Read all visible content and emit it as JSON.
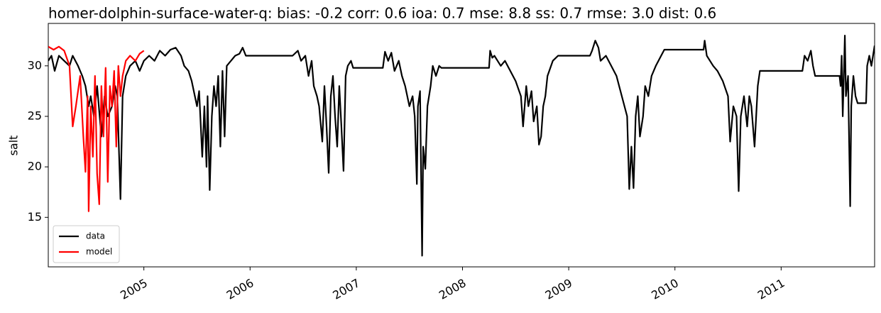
{
  "chart_data": {
    "type": "line",
    "title": "homer-dolphin-surface-water-q: bias: -0.2  corr: 0.6  ioa: 0.7  mse: 8.8  ss: 0.7  rmse: 3.0  dist: 0.6",
    "y_label": "salt",
    "xlim": [
      2004.1,
      2011.88
    ],
    "xticks": [
      2005,
      2006,
      2007,
      2008,
      2009,
      2010,
      2011
    ],
    "ylim": [
      10.1,
      34.2
    ],
    "yticks": [
      15,
      20,
      25,
      30
    ],
    "grid": false,
    "legend": "lower left",
    "series": [
      {
        "name": "data",
        "color": "#000000",
        "x": [
          2004.1,
          2004.13,
          2004.16,
          2004.2,
          2004.25,
          2004.3,
          2004.33,
          2004.38,
          2004.42,
          2004.45,
          2004.48,
          2004.5,
          2004.53,
          2004.56,
          2004.6,
          2004.63,
          2004.66,
          2004.7,
          2004.73,
          2004.75,
          2004.78,
          2004.8,
          2004.83,
          2004.87,
          2004.92,
          2004.96,
          2005.0,
          2005.05,
          2005.1,
          2005.15,
          2005.2,
          2005.25,
          2005.3,
          2005.35,
          2005.38,
          2005.42,
          2005.45,
          2005.48,
          2005.5,
          2005.52,
          2005.55,
          2005.57,
          2005.59,
          2005.6,
          2005.62,
          2005.64,
          2005.66,
          2005.68,
          2005.7,
          2005.72,
          2005.74,
          2005.76,
          2005.78,
          2005.82,
          2005.86,
          2005.9,
          2005.93,
          2005.96,
          2006.4,
          2006.45,
          2006.48,
          2006.52,
          2006.55,
          2006.58,
          2006.6,
          2006.63,
          2006.65,
          2006.68,
          2006.7,
          2006.72,
          2006.74,
          2006.76,
          2006.78,
          2006.8,
          2006.82,
          2006.84,
          2006.86,
          2006.88,
          2006.9,
          2006.92,
          2006.95,
          2006.97,
          2007.25,
          2007.27,
          2007.3,
          2007.33,
          2007.36,
          2007.4,
          2007.43,
          2007.46,
          2007.5,
          2007.53,
          2007.55,
          2007.57,
          2007.58,
          2007.6,
          2007.62,
          2007.63,
          2007.65,
          2007.67,
          2007.7,
          2007.72,
          2007.75,
          2007.78,
          2007.8,
          2008.25,
          2008.26,
          2008.28,
          2008.3,
          2008.33,
          2008.36,
          2008.4,
          2008.45,
          2008.5,
          2008.55,
          2008.57,
          2008.6,
          2008.62,
          2008.65,
          2008.67,
          2008.7,
          2008.72,
          2008.74,
          2008.76,
          2008.78,
          2008.8,
          2008.85,
          2008.9,
          2009.2,
          2009.22,
          2009.25,
          2009.28,
          2009.3,
          2009.35,
          2009.4,
          2009.45,
          2009.5,
          2009.55,
          2009.57,
          2009.59,
          2009.61,
          2009.63,
          2009.65,
          2009.67,
          2009.7,
          2009.72,
          2009.75,
          2009.78,
          2009.82,
          2009.87,
          2009.9,
          2010.27,
          2010.28,
          2010.3,
          2010.33,
          2010.36,
          2010.4,
          2010.45,
          2010.5,
          2010.52,
          2010.55,
          2010.58,
          2010.6,
          2010.62,
          2010.65,
          2010.68,
          2010.7,
          2010.72,
          2010.75,
          2010.78,
          2010.8,
          2011.2,
          2011.22,
          2011.25,
          2011.28,
          2011.3,
          2011.32,
          2011.55,
          2011.56,
          2011.57,
          2011.58,
          2011.6,
          2011.61,
          2011.63,
          2011.65,
          2011.66,
          2011.68,
          2011.7,
          2011.72,
          2011.8,
          2011.81,
          2011.83,
          2011.85,
          2011.88
        ],
        "values": [
          30.5,
          31,
          29.5,
          31,
          30.5,
          30,
          31,
          30,
          29,
          28,
          26,
          27,
          25,
          28,
          23,
          27,
          25,
          26,
          28,
          27,
          16.8,
          27,
          29,
          30,
          30.5,
          29.5,
          30.5,
          31,
          30.5,
          31.5,
          31,
          31.6,
          31.8,
          31,
          30,
          29.5,
          28.5,
          27,
          26,
          27.5,
          21,
          26,
          20,
          27,
          17.7,
          25,
          28,
          26,
          29,
          22,
          29.5,
          23,
          30,
          30.5,
          31,
          31.2,
          31.8,
          31,
          31,
          31.5,
          30.5,
          31,
          29,
          30.5,
          28,
          27,
          26,
          22.5,
          28,
          24,
          19.4,
          27,
          29,
          25,
          22,
          28,
          24,
          19.6,
          29,
          30,
          30.5,
          29.8,
          29.8,
          31.4,
          30.5,
          31.3,
          29.5,
          30.5,
          29,
          28,
          26,
          27,
          25,
          18.3,
          26,
          27.5,
          11.2,
          22,
          19.8,
          26,
          28,
          30,
          29,
          30,
          29.8,
          29.8,
          31.5,
          30.8,
          31,
          30.5,
          30,
          30.5,
          29.5,
          28.5,
          27,
          24,
          28,
          26,
          27.5,
          24.5,
          26,
          22.2,
          23,
          26,
          27,
          29,
          30.5,
          31,
          31,
          31.5,
          32.5,
          31.8,
          30.5,
          31,
          30,
          29,
          27,
          25,
          17.8,
          22,
          17.9,
          25,
          27,
          23,
          25,
          28,
          27,
          29,
          30,
          31,
          31.6,
          31.6,
          32.5,
          31,
          30.5,
          30,
          29.5,
          28.5,
          27,
          22.5,
          26,
          25,
          17.6,
          25,
          27,
          24,
          27,
          26,
          22,
          28,
          29.5,
          29.5,
          31,
          30.5,
          31.5,
          30,
          29,
          29,
          28,
          31,
          25,
          33,
          27,
          29,
          16.1,
          26,
          29,
          27,
          26.3,
          26.3,
          30,
          31,
          30,
          32
        ]
      },
      {
        "name": "model",
        "color": "#ff0000",
        "x": [
          2004.1,
          2004.15,
          2004.2,
          2004.25,
          2004.3,
          2004.33,
          2004.36,
          2004.4,
          2004.43,
          2004.45,
          2004.47,
          2004.48,
          2004.5,
          2004.52,
          2004.54,
          2004.56,
          2004.58,
          2004.6,
          2004.62,
          2004.64,
          2004.66,
          2004.68,
          2004.7,
          2004.72,
          2004.74,
          2004.76,
          2004.78,
          2004.8,
          2004.83,
          2004.87,
          2004.92,
          2004.96,
          2005.0
        ],
        "values": [
          31.9,
          31.6,
          31.9,
          31.5,
          30,
          24,
          26,
          29,
          23,
          19.5,
          27,
          15.6,
          26,
          21,
          29,
          19.3,
          16.3,
          28,
          23,
          29.8,
          18.5,
          28,
          26,
          29.5,
          22,
          30,
          27,
          29,
          30.5,
          31,
          30.5,
          31.2,
          31.5
        ]
      }
    ]
  }
}
